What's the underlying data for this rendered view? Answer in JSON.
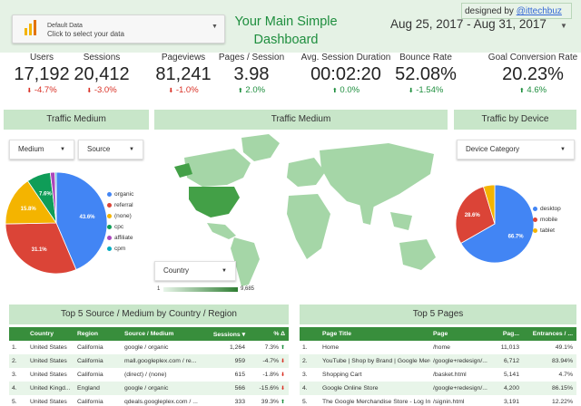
{
  "header": {
    "datasource_title": "Default Data",
    "datasource_subtitle": "Click to select your data",
    "title": "Your Main Simple Dashboard",
    "date_range": "Aug 25, 2017 - Aug 31, 2017",
    "designed_by_prefix": "designed by ",
    "designed_by_handle": "@ittechbuz"
  },
  "kpis": [
    {
      "label": "Users",
      "value": "17,192",
      "change": "-4.7%",
      "dir": "down"
    },
    {
      "label": "Sessions",
      "value": "20,412",
      "change": "-3.0%",
      "dir": "down"
    },
    {
      "label": "Pageviews",
      "value": "81,241",
      "change": "-1.0%",
      "dir": "down"
    },
    {
      "label": "Pages / Session",
      "value": "3.98",
      "change": "2.0%",
      "dir": "up"
    },
    {
      "label": "Avg. Session Duration",
      "value": "00:02:20",
      "change": "0.0%",
      "dir": "up"
    },
    {
      "label": "Bounce Rate",
      "value": "52.08%",
      "change": "-1.54%",
      "dir": "down_good"
    },
    {
      "label": "Goal Conversion Rate",
      "value": "20.23%",
      "change": "4.6%",
      "dir": "up"
    }
  ],
  "sections": {
    "traffic_medium_left": "Traffic Medium",
    "traffic_medium_map": "Traffic Medium",
    "traffic_device": "Traffic by Device",
    "top_sources": "Top 5 Source / Medium by Country  / Region",
    "top_pages": "Top 5 Pages"
  },
  "controls": {
    "medium": "Medium",
    "source": "Source",
    "device_category": "Device Category",
    "country": "Country",
    "map_scale_min": "1",
    "map_scale_max": "9,685"
  },
  "colors": {
    "blue": "#4285f4",
    "red": "#db4437",
    "yellow": "#f4b400",
    "green": "#0f9d58",
    "purple": "#ab47bc",
    "teal": "#00acc1",
    "header_bg": "#e5f2e5",
    "section_bg": "#c8e6c9",
    "table_header": "#388e3c"
  },
  "chart_data": [
    {
      "type": "pie",
      "title": "Traffic Medium",
      "categories": [
        "organic",
        "referral",
        "(none)",
        "cpc",
        "affiliate",
        "cpm"
      ],
      "values": [
        43.6,
        31.1,
        15.8,
        7.6,
        1.5,
        0.4
      ],
      "slice_labels": [
        "43.6%",
        "31.1%",
        "15.8%",
        "7.6%",
        "",
        ""
      ],
      "colors": [
        "#4285f4",
        "#db4437",
        "#f4b400",
        "#0f9d58",
        "#ab47bc",
        "#00acc1"
      ]
    },
    {
      "type": "pie",
      "title": "Traffic by Device",
      "categories": [
        "desktop",
        "mobile",
        "tablet"
      ],
      "values": [
        66.7,
        28.6,
        4.7
      ],
      "slice_labels": [
        "66.7%",
        "28.6%",
        ""
      ],
      "colors": [
        "#4285f4",
        "#db4437",
        "#f4b400"
      ]
    }
  ],
  "sources_table": {
    "columns": [
      "",
      "Country",
      "Region",
      "Source / Medium",
      "Sessions ▾",
      "% Δ"
    ],
    "rows": [
      [
        "1.",
        "United States",
        "California",
        "google / organic",
        "1,264",
        "7.3%",
        "up"
      ],
      [
        "2.",
        "United States",
        "California",
        "mall.googleplex.com / re...",
        "959",
        "-4.7%",
        "down"
      ],
      [
        "3.",
        "United States",
        "California",
        "(direct) / (none)",
        "615",
        "-1.8%",
        "down"
      ],
      [
        "4.",
        "United Kingd...",
        "England",
        "google / organic",
        "566",
        "-15.6%",
        "down"
      ],
      [
        "5.",
        "United States",
        "California",
        "qdeals.googleplex.com / ...",
        "333",
        "39.3%",
        "up"
      ]
    ]
  },
  "pages_table": {
    "columns": [
      "",
      "Page Title",
      "Page",
      "Pag...",
      "Entrances / ..."
    ],
    "rows": [
      [
        "1.",
        "Home",
        "/home",
        "11,013",
        "49.1%"
      ],
      [
        "2.",
        "YouTube | Shop by Brand | Google Merc...",
        "/google+redesign/...",
        "6,712",
        "83.94%"
      ],
      [
        "3.",
        "Shopping Cart",
        "/basket.html",
        "5,141",
        "4.7%"
      ],
      [
        "4.",
        "Google Online Store",
        "/google+redesign/...",
        "4,200",
        "86.15%"
      ],
      [
        "5.",
        "The Google Merchandise Store - Log In",
        "/signin.html",
        "3,191",
        "12.22%"
      ]
    ]
  }
}
